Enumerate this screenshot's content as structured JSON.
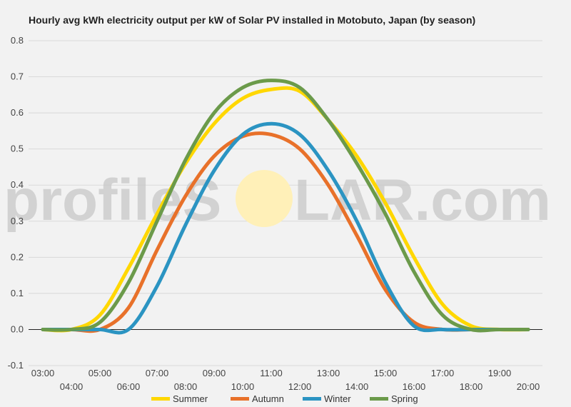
{
  "chart_data": {
    "type": "line",
    "title": "Hourly avg kWh electricity output per kW of Solar PV installed in Motobuto, Japan (by season)",
    "xlabel": "",
    "ylabel": "",
    "x": [
      "03:00",
      "04:00",
      "05:00",
      "06:00",
      "07:00",
      "08:00",
      "09:00",
      "10:00",
      "11:00",
      "12:00",
      "13:00",
      "14:00",
      "15:00",
      "16:00",
      "17:00",
      "18:00",
      "19:00",
      "20:00"
    ],
    "yticks": [
      -0.1,
      0.0,
      0.1,
      0.2,
      0.3,
      0.4,
      0.5,
      0.6,
      0.7,
      0.8
    ],
    "ylim": [
      -0.1,
      0.8
    ],
    "grid": true,
    "legend_position": "bottom",
    "series": [
      {
        "name": "Summer",
        "color": "#ffd700",
        "values": [
          0.0,
          0.0,
          0.04,
          0.17,
          0.32,
          0.46,
          0.57,
          0.64,
          0.665,
          0.66,
          0.58,
          0.48,
          0.35,
          0.2,
          0.07,
          0.01,
          0.0,
          0.0
        ]
      },
      {
        "name": "Autumn",
        "color": "#e8712a",
        "values": [
          0.0,
          0.0,
          0.0,
          0.06,
          0.22,
          0.37,
          0.48,
          0.535,
          0.54,
          0.5,
          0.4,
          0.26,
          0.11,
          0.02,
          0.0,
          0.0,
          0.0,
          0.0
        ]
      },
      {
        "name": "Winter",
        "color": "#2b94c2",
        "values": [
          0.0,
          0.0,
          0.0,
          0.0,
          0.12,
          0.29,
          0.44,
          0.54,
          0.57,
          0.54,
          0.44,
          0.3,
          0.13,
          0.01,
          0.0,
          0.0,
          0.0,
          0.0
        ]
      },
      {
        "name": "Spring",
        "color": "#6b9a4a",
        "values": [
          0.0,
          0.0,
          0.02,
          0.13,
          0.3,
          0.47,
          0.6,
          0.67,
          0.69,
          0.67,
          0.58,
          0.46,
          0.32,
          0.16,
          0.04,
          0.0,
          0.0,
          0.0
        ]
      }
    ]
  },
  "watermark": {
    "text_left": "profileS",
    "text_right": "LAR.com",
    "sun_color": "#fff0b8"
  }
}
